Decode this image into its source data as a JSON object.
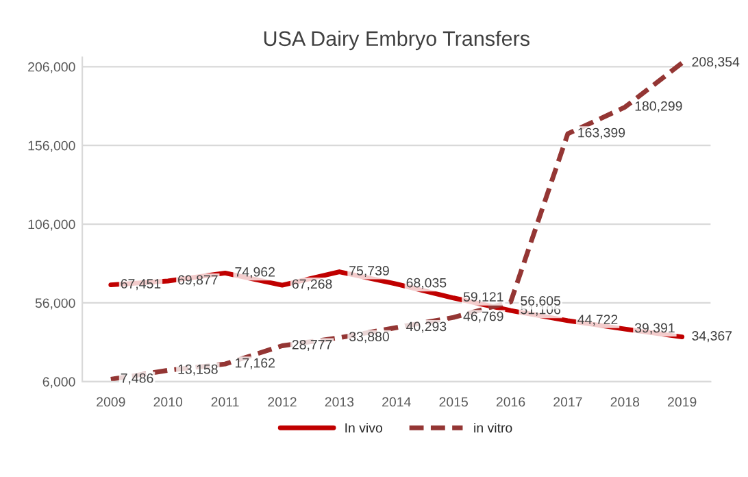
{
  "chart_data": {
    "type": "line",
    "title": "USA Dairy Embryo Transfers",
    "categories": [
      "2009",
      "2010",
      "2011",
      "2012",
      "2013",
      "2014",
      "2015",
      "2016",
      "2017",
      "2018",
      "2019"
    ],
    "series": [
      {
        "name": "In vivo",
        "color": "#c00000",
        "line_style": "solid",
        "values": [
          67451,
          69877,
          74962,
          67268,
          75739,
          68035,
          59121,
          51106,
          44722,
          39391,
          34367
        ],
        "value_labels": [
          "67,451",
          "69,877",
          "74,962",
          "67,268",
          "75,739",
          "68,035",
          "59,121",
          "51,106",
          "44,722",
          "39,391",
          "34,367"
        ]
      },
      {
        "name": "in vitro",
        "color": "#943634",
        "line_style": "dashed",
        "values": [
          7486,
          13158,
          17162,
          28777,
          33880,
          40293,
          46769,
          56605,
          163399,
          180299,
          208354
        ],
        "value_labels": [
          "7,486",
          "13,158",
          "17,162",
          "28,777",
          "33,880",
          "40,293",
          "46,769",
          "56,605",
          "163,399",
          "180,299",
          "208,354"
        ]
      }
    ],
    "ylim": [
      6000,
      212000
    ],
    "yticks": [
      {
        "value": 6000,
        "label": "6,000"
      },
      {
        "value": 56000,
        "label": "56,000"
      },
      {
        "value": 106000,
        "label": "106,000"
      },
      {
        "value": 156000,
        "label": "156,000"
      },
      {
        "value": 206000,
        "label": "206,000"
      }
    ],
    "grid": "y",
    "legend": "bottom",
    "marker": "none"
  }
}
